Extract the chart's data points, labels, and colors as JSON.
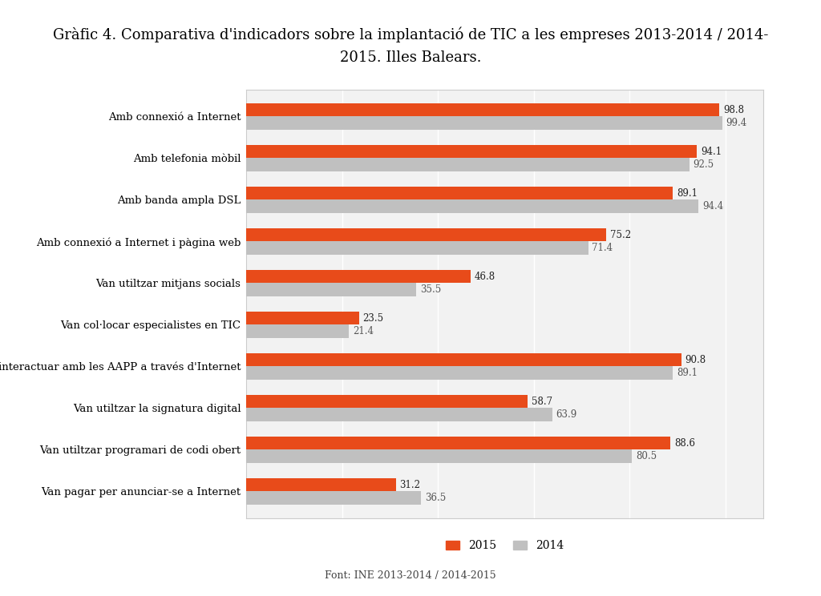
{
  "title_line1": "Gràfic 4. Comparativa d'indicadors sobre la implantació de TIC a les empreses 2013-2014 / 2014-",
  "title_line2": "2015. Illes Balears.",
  "categories": [
    "Amb connexió a Internet",
    "Amb telefonia mòbil",
    "Amb banda ampla DSL",
    "Amb connexió a Internet i pàgina web",
    "Van utiltzar mitjans socials",
    "Van col·locar especialistes en TIC",
    "Van interactuar amb les AAPP a través d'Internet",
    "Van utiltzar la signatura digital",
    "Van utiltzar programari de codi obert",
    "Van pagar per anunciar-se a Internet"
  ],
  "values_2015": [
    98.8,
    94.1,
    89.1,
    75.2,
    46.8,
    23.5,
    90.8,
    58.7,
    88.6,
    31.2
  ],
  "values_2014": [
    99.4,
    92.5,
    94.4,
    71.4,
    35.5,
    21.4,
    89.1,
    63.9,
    80.5,
    36.5
  ],
  "color_2015": "#E84B1A",
  "color_2014": "#C0C0C0",
  "bar_height": 0.32,
  "xlim": [
    0,
    108
  ],
  "legend_labels": [
    "2015",
    "2014"
  ],
  "footer": "Font: INE 2013-2014 / 2014-2015",
  "title_fontsize": 13,
  "label_fontsize": 9.5,
  "value_fontsize": 8.5,
  "background_color": "#FFFFFF",
  "chart_bg": "#F2F2F2",
  "border_color": "#CCCCCC"
}
